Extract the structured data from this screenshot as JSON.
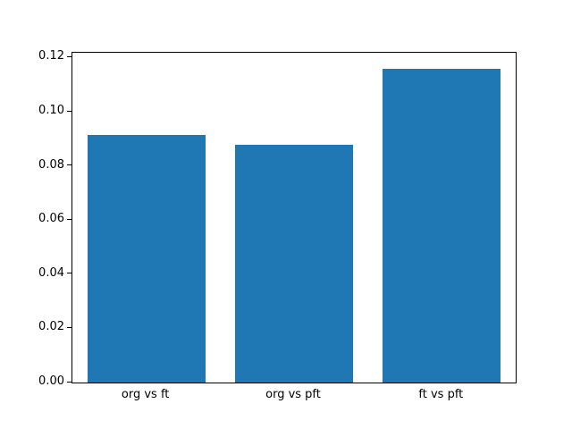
{
  "figure": {
    "background": "#ffffff",
    "plot_background": "#ffffff",
    "spine_color": "#000000"
  },
  "chart_data": {
    "type": "bar",
    "categories": [
      "org vs ft",
      "org vs pft",
      "ft vs pft"
    ],
    "values": [
      0.0915,
      0.0878,
      0.116
    ],
    "title": "",
    "xlabel": "",
    "ylabel": "",
    "ylim": [
      0,
      0.1218
    ],
    "yticks": [
      0,
      0.02,
      0.04,
      0.06,
      0.08,
      0.1,
      0.12
    ],
    "ytick_labels": [
      "0.00",
      "0.02",
      "0.04",
      "0.06",
      "0.08",
      "0.10",
      "0.12"
    ],
    "bar_color": "#1f77b4",
    "bar_width_fraction": 0.8,
    "grid": false,
    "legend": null
  }
}
